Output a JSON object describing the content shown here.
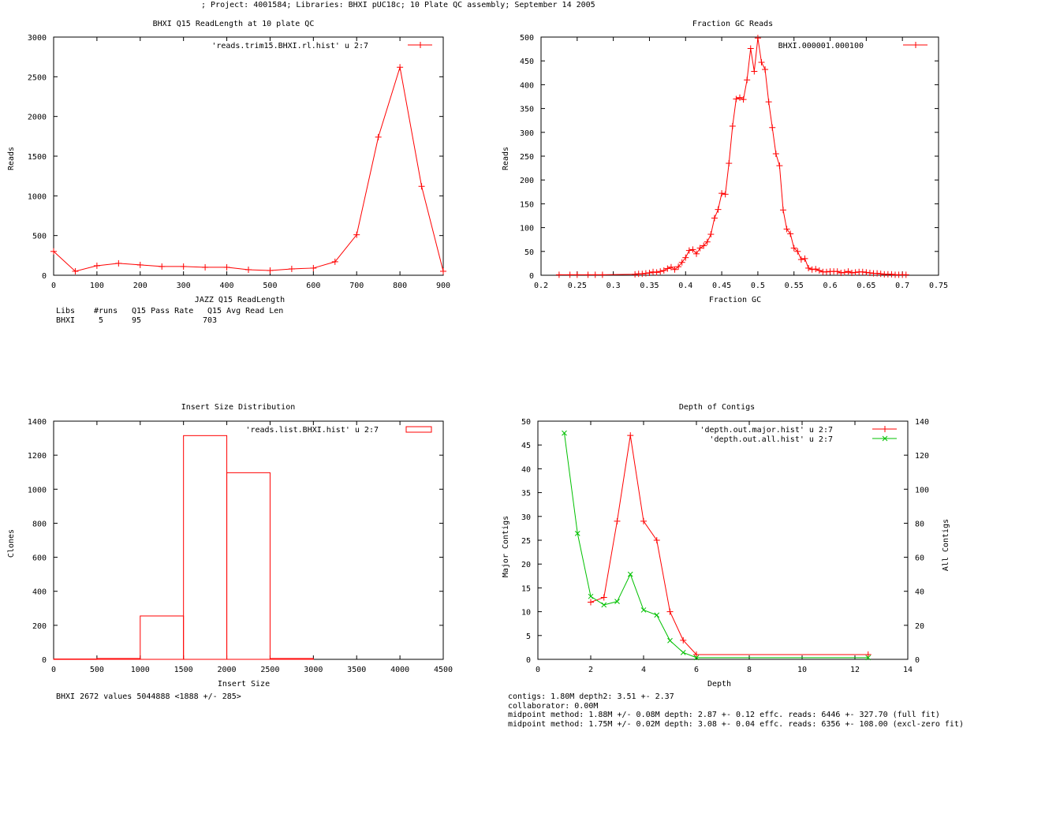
{
  "header": {
    "text": "; Project: 4001584; Libraries: BHXI pUC18c; 10 Plate QC assembly; September 14 2005"
  },
  "colors": {
    "red": "#ff0000",
    "green": "#00c000",
    "axis": "#000000"
  },
  "chart_data": [
    {
      "type": "line",
      "title": "BHXI Q15 ReadLength at 10 plate QC",
      "xlabel": "JAZZ Q15 ReadLength",
      "ylabel": "Reads",
      "xlim": [
        0,
        900
      ],
      "ylim": [
        0,
        3000
      ],
      "xticks": [
        0,
        100,
        200,
        300,
        400,
        500,
        600,
        700,
        800,
        900
      ],
      "yticks": [
        0,
        500,
        1000,
        1500,
        2000,
        2500,
        3000
      ],
      "legend_position": "top-right",
      "series": [
        {
          "name": "'reads.trim15.BHXI.rl.hist' u 2:7",
          "color": "#ff0000",
          "x": [
            0,
            50,
            100,
            150,
            200,
            250,
            300,
            350,
            400,
            450,
            500,
            550,
            600,
            650,
            700,
            750,
            800,
            850,
            900
          ],
          "values": [
            300,
            50,
            120,
            150,
            130,
            110,
            110,
            100,
            100,
            70,
            60,
            80,
            90,
            170,
            510,
            1740,
            2620,
            1120,
            50
          ]
        }
      ],
      "stats_table": {
        "headers": [
          "Libs",
          "#runs",
          "Q15 Pass Rate",
          "Q15 Avg Read Len"
        ],
        "rows": [
          [
            "BHXI",
            "5",
            "95",
            "703"
          ]
        ]
      }
    },
    {
      "type": "line",
      "title": "Fraction GC Reads",
      "xlabel": "Fraction GC",
      "ylabel": "Reads",
      "xlim": [
        0.2,
        0.75
      ],
      "ylim": [
        0,
        500
      ],
      "xticks": [
        0.2,
        0.25,
        0.3,
        0.35,
        0.4,
        0.45,
        0.5,
        0.55,
        0.6,
        0.65,
        0.7,
        0.75
      ],
      "yticks": [
        0,
        50,
        100,
        150,
        200,
        250,
        300,
        350,
        400,
        450,
        500
      ],
      "legend_position": "top-right",
      "series": [
        {
          "name": "BHXI.000001.000100",
          "color": "#ff0000",
          "x": [
            0.225,
            0.24,
            0.25,
            0.265,
            0.275,
            0.285,
            0.33,
            0.335,
            0.34,
            0.345,
            0.35,
            0.355,
            0.36,
            0.365,
            0.37,
            0.375,
            0.38,
            0.385,
            0.39,
            0.395,
            0.4,
            0.405,
            0.41,
            0.415,
            0.42,
            0.425,
            0.43,
            0.435,
            0.44,
            0.445,
            0.45,
            0.455,
            0.46,
            0.465,
            0.47,
            0.475,
            0.48,
            0.485,
            0.49,
            0.495,
            0.5,
            0.505,
            0.51,
            0.515,
            0.52,
            0.525,
            0.53,
            0.535,
            0.54,
            0.545,
            0.55,
            0.555,
            0.56,
            0.565,
            0.57,
            0.575,
            0.58,
            0.585,
            0.59,
            0.595,
            0.6,
            0.605,
            0.61,
            0.615,
            0.62,
            0.625,
            0.63,
            0.635,
            0.64,
            0.645,
            0.65,
            0.655,
            0.66,
            0.665,
            0.67,
            0.675,
            0.68,
            0.685,
            0.69,
            0.695,
            0.7,
            0.705
          ],
          "values": [
            1,
            1,
            1,
            1,
            1,
            1,
            2,
            3,
            3,
            4,
            5,
            7,
            6,
            8,
            10,
            14,
            17,
            12,
            18,
            27,
            37,
            52,
            54,
            45,
            57,
            62,
            70,
            86,
            120,
            138,
            172,
            170,
            235,
            313,
            370,
            373,
            369,
            410,
            476,
            428,
            498,
            447,
            432,
            364,
            310,
            255,
            230,
            137,
            97,
            87,
            57,
            50,
            33,
            35,
            15,
            12,
            13,
            10,
            7,
            7,
            8,
            8,
            8,
            5,
            6,
            8,
            5,
            6,
            7,
            7,
            6,
            5,
            4,
            4,
            3,
            2,
            2,
            2,
            1,
            1,
            1,
            1
          ]
        }
      ]
    },
    {
      "type": "bar",
      "title": "Insert Size Distribution",
      "xlabel": "Insert Size",
      "ylabel": "Clones",
      "xlim": [
        0,
        4500
      ],
      "ylim": [
        0,
        1400
      ],
      "xticks": [
        0,
        500,
        1000,
        1500,
        2000,
        2500,
        3000,
        3500,
        4000,
        4500
      ],
      "yticks": [
        0,
        200,
        400,
        600,
        800,
        1000,
        1200,
        1400
      ],
      "legend_position": "top-right",
      "bin_width": 500,
      "series": [
        {
          "name": "'reads.list.BHXI.hist' u 2:7",
          "color": "#ff0000",
          "x": [
            0,
            500,
            1000,
            1500,
            2000,
            2500
          ],
          "values": [
            2,
            5,
            255,
            1315,
            1097,
            5
          ]
        }
      ],
      "summary": "BHXI 2672 values 5044888 <1888 +/- 285>"
    },
    {
      "type": "line",
      "title": "Depth of Contigs",
      "xlabel": "Depth",
      "ylabel": "Major Contigs",
      "y2label": "All Contigs",
      "xlim": [
        0,
        14
      ],
      "ylim": [
        0,
        50
      ],
      "y2lim": [
        0,
        140
      ],
      "xticks": [
        0,
        2,
        4,
        6,
        8,
        10,
        12,
        14
      ],
      "yticks": [
        0,
        5,
        10,
        15,
        20,
        25,
        30,
        35,
        40,
        45,
        50
      ],
      "y2ticks": [
        0,
        20,
        40,
        60,
        80,
        100,
        120,
        140
      ],
      "legend_position": "top-right",
      "series": [
        {
          "name": "'depth.out.major.hist' u 2:7",
          "color": "#ff0000",
          "axis": "y",
          "x": [
            2,
            2.5,
            3,
            3.5,
            4,
            4.5,
            5,
            5.5,
            6,
            12.5
          ],
          "values": [
            12,
            13,
            29,
            47,
            29,
            25,
            10,
            4,
            1,
            1
          ]
        },
        {
          "name": "'depth.out.all.hist' u 2:7",
          "color": "#00c000",
          "axis": "y2",
          "x": [
            1,
            1.5,
            2,
            2.5,
            3,
            3.5,
            4,
            4.5,
            5,
            5.5,
            6,
            12.5
          ],
          "values": [
            133,
            74,
            37,
            32,
            34,
            50,
            29,
            26,
            11,
            4,
            1,
            1
          ]
        }
      ],
      "stats_lines": [
        "contigs:      1.80M     depth2: 3.51 +- 2.37",
        "collaborator: 0.00M",
        "midpoint method: 1.88M +/- 0.08M   depth: 2.87 +- 0.12 effc. reads: 6446 +- 327.70 (full fit)",
        "midpoint method: 1.75M +/- 0.02M   depth: 3.08 +- 0.04 effc. reads: 6356 +- 108.00 (excl-zero fit)"
      ]
    }
  ]
}
